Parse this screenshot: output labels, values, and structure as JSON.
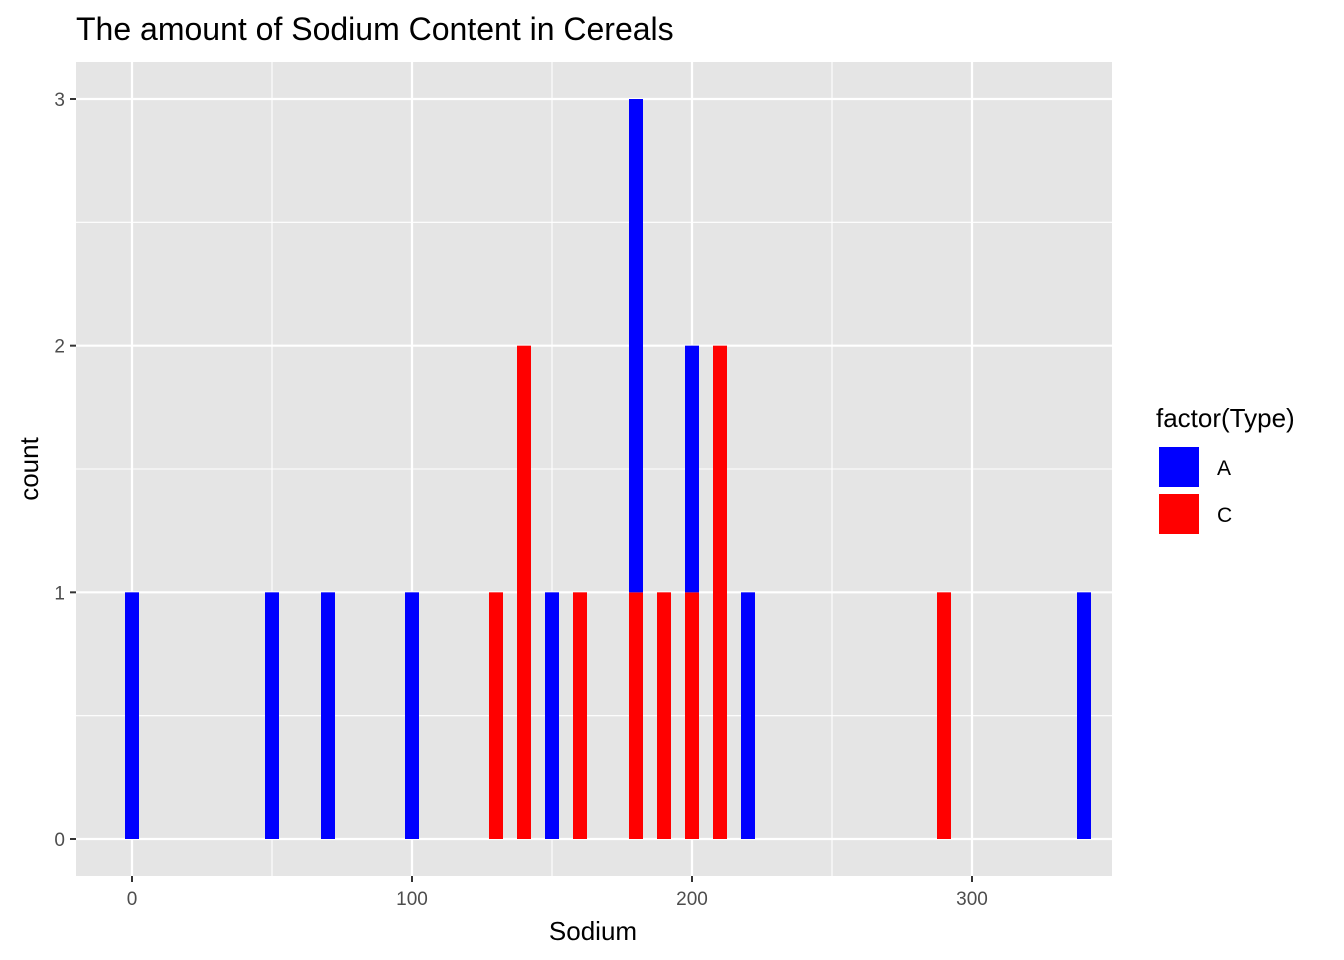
{
  "chart_data": {
    "type": "bar",
    "title": "The amount of Sodium Content in Cereals",
    "xlabel": "Sodium",
    "ylabel": "count",
    "xlim": [
      -20,
      350
    ],
    "ylim": [
      -0.15,
      3.15
    ],
    "x_ticks": [
      0,
      100,
      200,
      300
    ],
    "x_tick_labels": [
      "0",
      "100",
      "200",
      "300"
    ],
    "x_minor": [
      50,
      150,
      250
    ],
    "y_ticks": [
      0,
      1,
      2,
      3
    ],
    "y_tick_labels": [
      "0",
      "1",
      "2",
      "3"
    ],
    "y_minor": [
      0.5,
      1.5,
      2.5
    ],
    "grid": true,
    "stacked": true,
    "bin_width": 5,
    "legend": {
      "title": "factor(Type)",
      "placement": "right"
    },
    "series": [
      {
        "name": "A",
        "color": "#0000ff",
        "x": [
          0,
          50,
          70,
          100,
          150,
          180,
          200,
          220,
          340
        ],
        "values": [
          1,
          1,
          1,
          1,
          1,
          2,
          1,
          1,
          1
        ]
      },
      {
        "name": "C",
        "color": "#ff0000",
        "x": [
          130,
          140,
          160,
          180,
          190,
          200,
          210,
          290
        ],
        "values": [
          1,
          2,
          1,
          1,
          1,
          1,
          2,
          1
        ]
      }
    ],
    "colors": {
      "panel_background": "#e5e5e5",
      "grid": "#ffffff",
      "tick_label": "#4d4d4d"
    }
  }
}
